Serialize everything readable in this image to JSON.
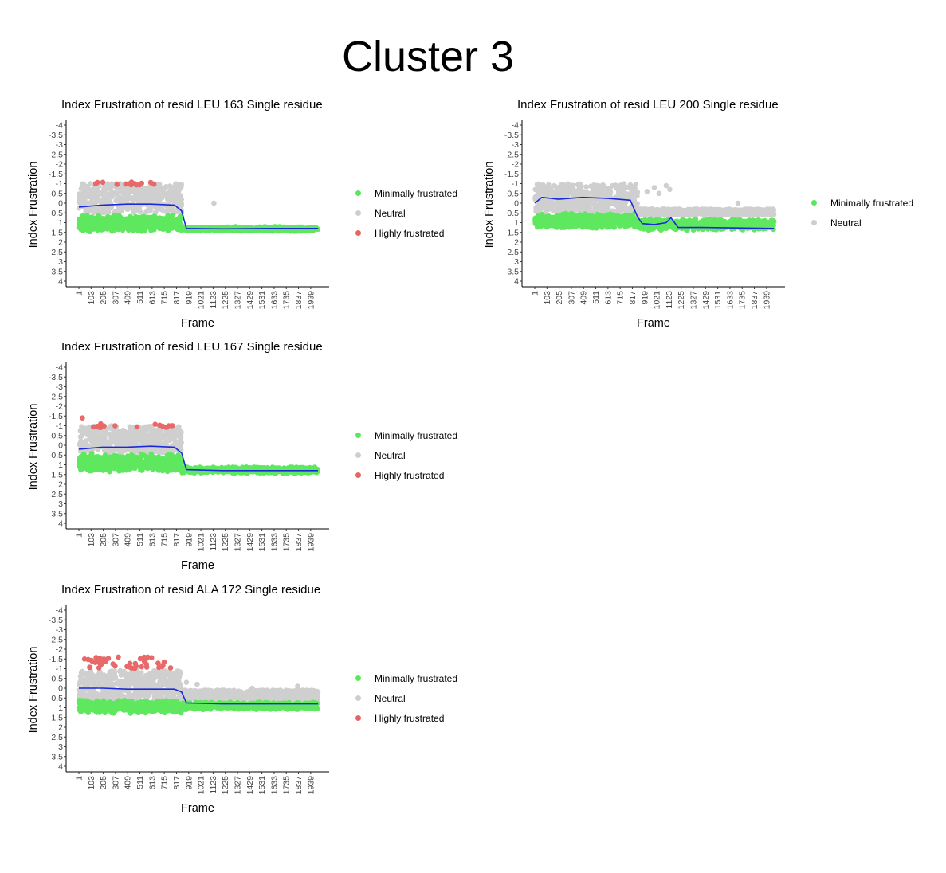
{
  "page_title": "Cluster 3",
  "colors": {
    "minimal": "#22e022",
    "neutral": "#bdbdbd",
    "high": "#e03030",
    "smooth": "#1a2ad8"
  },
  "chart_data": [
    {
      "type": "scatter",
      "title": "Index Frustration of resid LEU 163 Single residue",
      "xlabel": "Frame",
      "ylabel": "Index Frustration",
      "x_ticks": [
        "1",
        "103",
        "205",
        "307",
        "409",
        "511",
        "613",
        "715",
        "817",
        "919",
        "1021",
        "1123",
        "1225",
        "1327",
        "1429",
        "1531",
        "1633",
        "1735",
        "1837",
        "1939"
      ],
      "y_ticks": [
        "-4",
        "-3.5",
        "-3",
        "-2.5",
        "-2",
        "-1.5",
        "-1",
        "-0.5",
        "0",
        "0.5",
        "1",
        "1.5",
        "2",
        "2.5",
        "3",
        "3.5",
        "4"
      ],
      "xlim": [
        1,
        2000
      ],
      "ylim": [
        -4,
        4
      ],
      "y_reversed": true,
      "legend": [
        "Minimally frustrated",
        "Neutral",
        "Highly frustrated"
      ],
      "regimes": [
        {
          "x": [
            1,
            860
          ],
          "minimal": [
            0.6,
            1.5
          ],
          "neutral": [
            -1.0,
            0.5
          ],
          "high": [
            -1.1,
            -0.9
          ],
          "high_n": 14
        },
        {
          "x": [
            860,
            2000
          ],
          "minimal": [
            1.2,
            1.45
          ],
          "neutral": [],
          "high": [],
          "high_n": 0
        }
      ],
      "outliers": [
        {
          "x": 1130,
          "y": 0.0,
          "class": "neutral"
        }
      ],
      "smooth": {
        "x": [
          1,
          200,
          400,
          600,
          800,
          860,
          900,
          1200,
          1600,
          2000
        ],
        "y": [
          0.2,
          0.1,
          0.05,
          0.05,
          0.1,
          0.4,
          1.3,
          1.32,
          1.3,
          1.3
        ]
      }
    },
    {
      "type": "scatter",
      "title": "Index Frustration of resid LEU 200 Single residue",
      "xlabel": "Frame",
      "ylabel": "Index Frustration",
      "x_ticks": [
        "1",
        "103",
        "205",
        "307",
        "409",
        "511",
        "613",
        "715",
        "817",
        "919",
        "1021",
        "1123",
        "1225",
        "1327",
        "1429",
        "1531",
        "1633",
        "1735",
        "1837",
        "1939"
      ],
      "y_ticks": [
        "-4",
        "-3.5",
        "-3",
        "-2.5",
        "-2",
        "-1.5",
        "-1",
        "-0.5",
        "0",
        "0.5",
        "1",
        "1.5",
        "2",
        "2.5",
        "3",
        "3.5",
        "4"
      ],
      "xlim": [
        1,
        2000
      ],
      "ylim": [
        -4,
        4
      ],
      "y_reversed": true,
      "legend": [
        "Minimally frustrated",
        "Neutral"
      ],
      "regimes": [
        {
          "x": [
            1,
            860
          ],
          "minimal": [
            0.5,
            1.3
          ],
          "neutral": [
            -1.0,
            0.5
          ],
          "high": [],
          "high_n": 0
        },
        {
          "x": [
            860,
            2000
          ],
          "minimal": [
            0.8,
            1.4
          ],
          "neutral": [
            0.3,
            0.6
          ],
          "high": [],
          "high_n": 0
        }
      ],
      "outliers": [
        {
          "x": 940,
          "y": -0.6,
          "class": "neutral"
        },
        {
          "x": 1000,
          "y": -0.8,
          "class": "neutral"
        },
        {
          "x": 1040,
          "y": -0.5,
          "class": "neutral"
        },
        {
          "x": 1100,
          "y": -0.9,
          "class": "neutral"
        },
        {
          "x": 1130,
          "y": -0.7,
          "class": "neutral"
        },
        {
          "x": 1700,
          "y": 0.0,
          "class": "neutral"
        }
      ],
      "smooth": {
        "x": [
          1,
          60,
          200,
          400,
          600,
          800,
          860,
          900,
          1000,
          1100,
          1140,
          1200,
          1400,
          2000
        ],
        "y": [
          0.0,
          -0.3,
          -0.2,
          -0.3,
          -0.25,
          -0.15,
          0.7,
          1.05,
          1.1,
          1.0,
          0.75,
          1.25,
          1.25,
          1.3
        ]
      }
    },
    {
      "type": "scatter",
      "title": "Index Frustration of resid LEU 167 Single residue",
      "xlabel": "Frame",
      "ylabel": "Index Frustration",
      "x_ticks": [
        "1",
        "103",
        "205",
        "307",
        "409",
        "511",
        "613",
        "715",
        "817",
        "919",
        "1021",
        "1123",
        "1225",
        "1327",
        "1429",
        "1531",
        "1633",
        "1735",
        "1837",
        "1939"
      ],
      "y_ticks": [
        "-4",
        "-3.5",
        "-3",
        "-2.5",
        "-2",
        "-1.5",
        "-1",
        "-0.5",
        "0",
        "0.5",
        "1",
        "1.5",
        "2",
        "2.5",
        "3",
        "3.5",
        "4"
      ],
      "xlim": [
        1,
        2000
      ],
      "ylim": [
        -4,
        4
      ],
      "y_reversed": true,
      "legend": [
        "Minimally frustrated",
        "Neutral",
        "Highly frustrated"
      ],
      "regimes": [
        {
          "x": [
            1,
            860
          ],
          "minimal": [
            0.4,
            1.4
          ],
          "neutral": [
            -1.0,
            0.4
          ],
          "high": [
            -1.1,
            -0.9
          ],
          "high_n": 16
        },
        {
          "x": [
            860,
            2000
          ],
          "minimal": [
            1.1,
            1.45
          ],
          "neutral": [],
          "high": [],
          "high_n": 0
        }
      ],
      "outliers": [
        {
          "x": 30,
          "y": -1.4,
          "class": "high"
        }
      ],
      "smooth": {
        "x": [
          1,
          200,
          400,
          600,
          800,
          860,
          900,
          1200,
          2000
        ],
        "y": [
          0.2,
          0.1,
          0.1,
          0.05,
          0.1,
          0.4,
          1.25,
          1.3,
          1.3
        ]
      }
    },
    {
      "type": "scatter",
      "title": "Index Frustration of resid ALA 172 Single residue",
      "xlabel": "Frame",
      "ylabel": "Index Frustration",
      "x_ticks": [
        "1",
        "103",
        "205",
        "307",
        "409",
        "511",
        "613",
        "715",
        "817",
        "919",
        "1021",
        "1123",
        "1225",
        "1327",
        "1429",
        "1531",
        "1633",
        "1735",
        "1837",
        "1939"
      ],
      "y_ticks": [
        "-4",
        "-3.5",
        "-3",
        "-2.5",
        "-2",
        "-1.5",
        "-1",
        "-0.5",
        "0",
        "0.5",
        "1",
        "1.5",
        "2",
        "2.5",
        "3",
        "3.5",
        "4"
      ],
      "xlim": [
        1,
        2000
      ],
      "ylim": [
        -4,
        4
      ],
      "y_reversed": true,
      "legend": [
        "Minimally frustrated",
        "Neutral",
        "Highly frustrated"
      ],
      "regimes": [
        {
          "x": [
            1,
            860
          ],
          "minimal": [
            0.6,
            1.3
          ],
          "neutral": [
            -0.9,
            0.6
          ],
          "high": [
            -1.6,
            -1.0
          ],
          "high_n": 45
        },
        {
          "x": [
            860,
            2000
          ],
          "minimal": [
            0.7,
            1.1
          ],
          "neutral": [
            0.1,
            0.6
          ],
          "high": [],
          "high_n": 0
        }
      ],
      "outliers": [
        {
          "x": 900,
          "y": -0.3,
          "class": "neutral"
        },
        {
          "x": 990,
          "y": -0.2,
          "class": "neutral"
        },
        {
          "x": 1200,
          "y": 0.1,
          "class": "neutral"
        },
        {
          "x": 1450,
          "y": 0.0,
          "class": "neutral"
        },
        {
          "x": 1830,
          "y": -0.1,
          "class": "neutral"
        }
      ],
      "smooth": {
        "x": [
          1,
          200,
          400,
          600,
          800,
          860,
          900,
          1200,
          1500,
          1800,
          2000
        ],
        "y": [
          0.0,
          0.0,
          0.05,
          0.05,
          0.05,
          0.2,
          0.75,
          0.8,
          0.8,
          0.8,
          0.8
        ]
      }
    }
  ]
}
